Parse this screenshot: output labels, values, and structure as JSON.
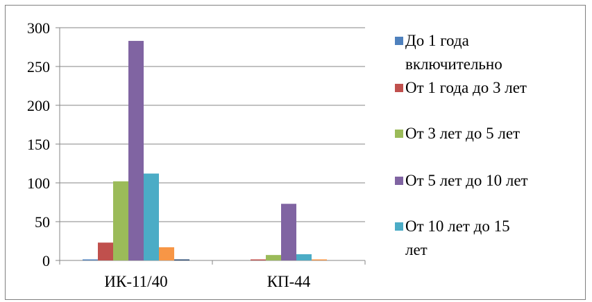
{
  "chart_data": {
    "type": "bar",
    "title": "",
    "xlabel": "",
    "ylabel": "",
    "ylim": [
      0,
      300
    ],
    "yticks": [
      0,
      50,
      100,
      150,
      200,
      250,
      300
    ],
    "grid": true,
    "legend_position": "right",
    "categories": [
      "ИК-11/40",
      "КП-44"
    ],
    "series": [
      {
        "name": "До 1 года включительно",
        "color": "#4f81bd",
        "values": [
          1,
          0
        ]
      },
      {
        "name": "От 1 года до 3 лет",
        "color": "#c0504d",
        "values": [
          23,
          1
        ]
      },
      {
        "name": "От 3 лет до 5 лет",
        "color": "#9bbb59",
        "values": [
          102,
          7
        ]
      },
      {
        "name": "От 5 лет до 10 лет",
        "color": "#8064a2",
        "values": [
          283,
          73
        ]
      },
      {
        "name": "От 10 лет до 15 лет",
        "color": "#4bacc6",
        "values": [
          112,
          8
        ]
      },
      {
        "name": "",
        "color": "#f79646",
        "values": [
          17,
          1
        ]
      },
      {
        "name": "",
        "color": "#2c4d75",
        "values": [
          1,
          0
        ]
      }
    ]
  }
}
